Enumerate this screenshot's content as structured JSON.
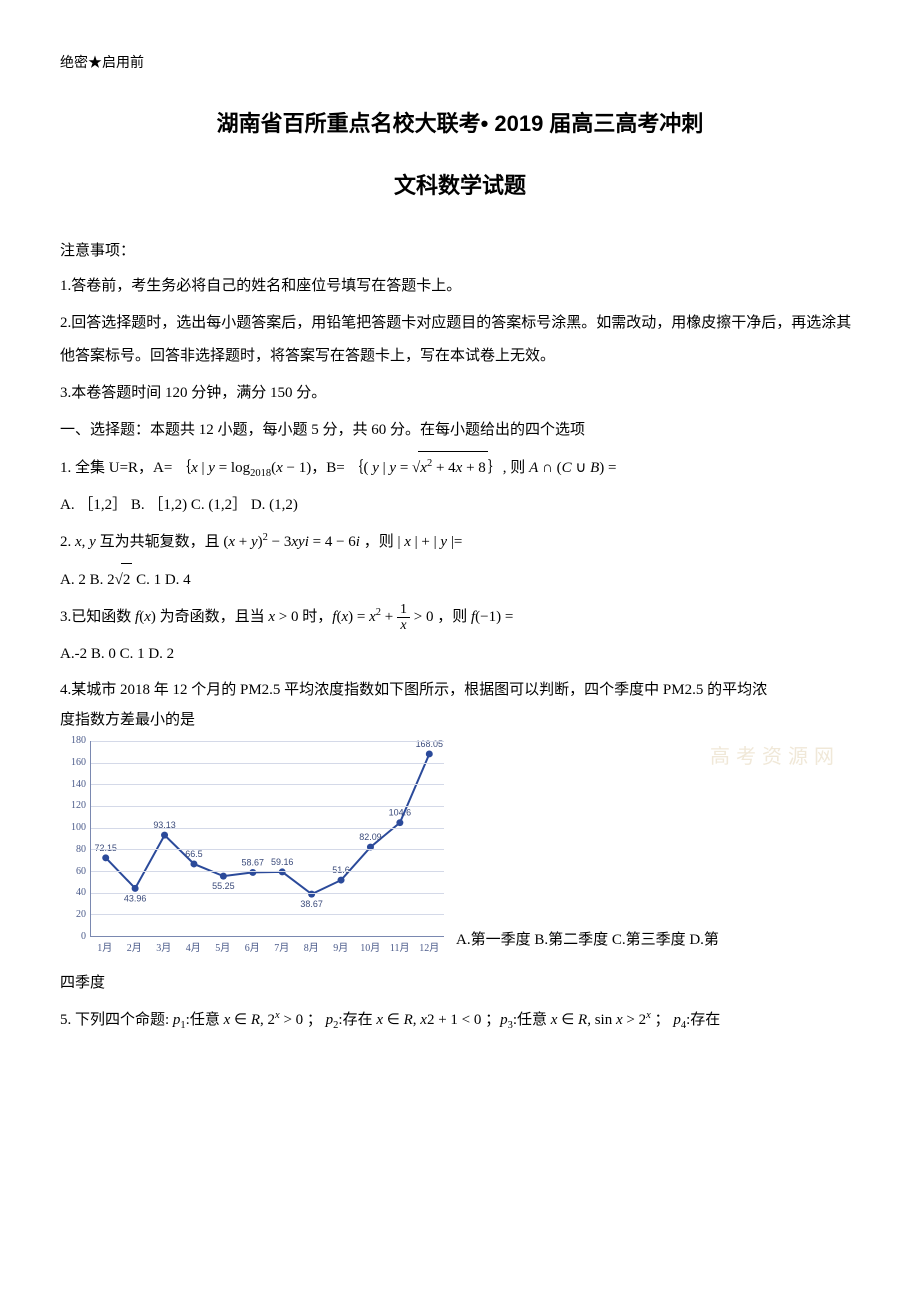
{
  "confidential": "绝密★启用前",
  "title_main": "湖南省百所重点名校大联考• 2019 届高三高考冲刺",
  "title_sub": "文科数学试题",
  "notes_heading": "注意事项：",
  "notes": [
    "1.答卷前，考生务必将自己的姓名和座位号填写在答题卡上。",
    "2.回答选择题时，选出每小题答案后，用铅笔把答题卡对应题目的答案标号涂黑。如需改动，用橡皮擦干净后，再选涂其他答案标号。回答非选择题时，将答案写在答题卡上，写在本试卷上无效。",
    "3.本卷答题时间 120 分钟，满分 150 分。"
  ],
  "section1": "一、选择题：本题共 12 小题，每小题 5 分，共 60 分。在每小题给出的四个选项",
  "q1": {
    "stem_a": "1. 全集 U=R，A= ｛",
    "stem_b": "，B= ｛( ",
    "stem_c": "｝,  则 ",
    "options": "A.  ［1,2］   B.  ［1,2)    C.   (1,2］   D.   (1,2)"
  },
  "q2": {
    "stem_a": "2.  ",
    "stem_b": " 互为共轭复数，且 ",
    "stem_c": " ，则 ",
    "options_a": "A.   2    B.   ",
    "options_b": "      C.   1    D.   4"
  },
  "q3": {
    "stem_a": "3.已知函数 ",
    "stem_b": " 为奇函数，且当 ",
    "stem_c": " 时，",
    "stem_d": " ，则 ",
    "options": "A.-2     B.   0    C.   1    D.   2"
  },
  "q4": {
    "line1": "4.某城市 2018 年 12 个月的 PM2.5 平均浓度指数如下图所示，根据图可以判断，四个季度中 PM2.5 的平均浓",
    "line2": "度指数方差最小的是",
    "options_inline": "A.第一季度  B.第二季度  C.第三季度  D.第",
    "options_cont": "四季度"
  },
  "q5": {
    "stem_a": "5. 下列四个命题:  ",
    "p1a": ":任意 ",
    "p1b": " ； ",
    "p2a": ":存在 ",
    "p2b": " ；",
    "p3a": ":任意 ",
    "p3b": " ； ",
    "p4a": ":存在"
  },
  "watermark": "高考资源网",
  "chart": {
    "y_min": 0,
    "y_max": 180,
    "y_step": 20,
    "x_labels": [
      "1月",
      "2月",
      "3月",
      "4月",
      "5月",
      "6月",
      "7月",
      "8月",
      "9月",
      "10月",
      "11月",
      "12月"
    ],
    "values": [
      72.15,
      43.96,
      93.13,
      66.5,
      55.25,
      58.67,
      59.16,
      38.67,
      51.6,
      82.09,
      104.6,
      168.05
    ],
    "point_labels": [
      "72.15",
      "43.96",
      "93.13",
      "66.5",
      "55.25",
      "58.67",
      "59.16",
      "38.67",
      "51.6",
      "82.09",
      "104.6",
      "168.05"
    ],
    "label_above": [
      true,
      false,
      true,
      true,
      false,
      true,
      true,
      false,
      true,
      true,
      true,
      true
    ],
    "line_color": "#2b4a9a",
    "point_color": "#2b4a9a",
    "grid_color": "#d4d9e8",
    "axis_color": "#7a88b0",
    "text_color": "#4a5a8a"
  }
}
